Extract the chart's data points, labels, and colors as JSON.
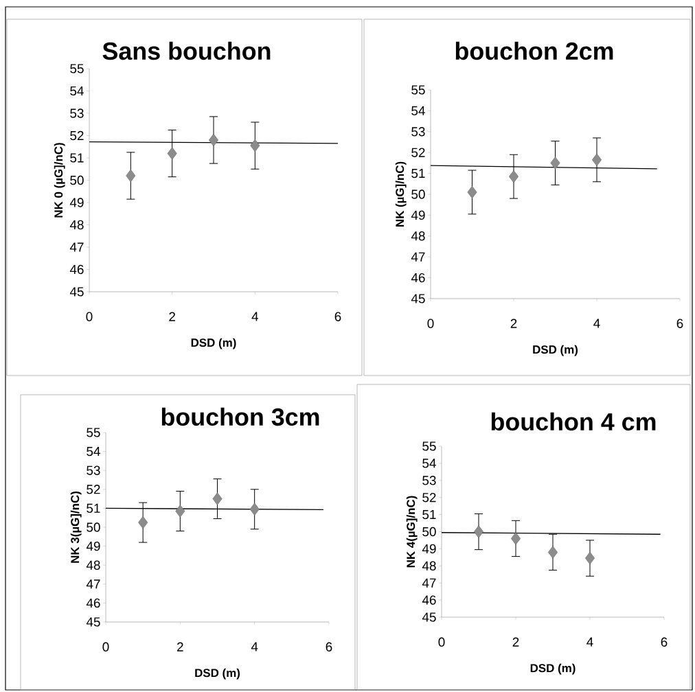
{
  "chart_data": [
    {
      "type": "scatter",
      "title": "Sans bouchon",
      "xlabel": "DSD  (m)",
      "ylabel": "NK 0 (µG]/nC)",
      "xlim": [
        0,
        6
      ],
      "ylim": [
        45,
        55
      ],
      "xticks": [
        0,
        2,
        4,
        6
      ],
      "yticks": [
        45,
        46,
        47,
        48,
        49,
        50,
        51,
        52,
        53,
        54,
        55
      ],
      "series": [
        {
          "type": "line",
          "x": [
            0,
            6
          ],
          "values": [
            51.72,
            51.65
          ],
          "color": "#000000"
        },
        {
          "type": "scatter",
          "marker": "diamond",
          "x": [
            1,
            2,
            3,
            4
          ],
          "values": [
            50.2,
            51.2,
            51.8,
            51.55
          ],
          "errors": [
            1.05,
            1.05,
            1.05,
            1.05
          ],
          "color": "#8c8c8c"
        }
      ]
    },
    {
      "type": "scatter",
      "title": "bouchon 2cm",
      "xlabel": "DSD  (m)",
      "ylabel": "NK  (µG]/nC)",
      "xlim": [
        0,
        6
      ],
      "ylim": [
        45,
        55
      ],
      "xticks": [
        0,
        2,
        4,
        6
      ],
      "yticks": [
        45,
        46,
        47,
        48,
        49,
        50,
        51,
        52,
        53,
        54,
        55
      ],
      "series": [
        {
          "type": "line",
          "x": [
            0,
            5.45
          ],
          "values": [
            51.38,
            51.22
          ],
          "color": "#000000"
        },
        {
          "type": "scatter",
          "marker": "diamond",
          "x": [
            1,
            2,
            3,
            4
          ],
          "values": [
            50.1,
            50.85,
            51.5,
            51.65
          ],
          "errors": [
            1.05,
            1.05,
            1.05,
            1.05
          ],
          "color": "#8c8c8c"
        }
      ]
    },
    {
      "type": "scatter",
      "title": "bouchon 3cm",
      "xlabel": "DSD  (m)",
      "ylabel": "NK 3(µG]/nC)",
      "xlim": [
        0,
        6
      ],
      "ylim": [
        45,
        55
      ],
      "xticks": [
        0,
        2,
        4,
        6
      ],
      "yticks": [
        45,
        46,
        47,
        48,
        49,
        50,
        51,
        52,
        53,
        54,
        55
      ],
      "series": [
        {
          "type": "line",
          "x": [
            0,
            5.85
          ],
          "values": [
            51.0,
            50.93
          ],
          "color": "#000000"
        },
        {
          "type": "scatter",
          "marker": "diamond",
          "x": [
            1,
            2,
            3,
            4
          ],
          "values": [
            50.25,
            50.85,
            51.5,
            50.95
          ],
          "errors": [
            1.05,
            1.05,
            1.05,
            1.05
          ],
          "color": "#8c8c8c"
        }
      ]
    },
    {
      "type": "scatter",
      "title": "bouchon 4 cm",
      "xlabel": "DSD  (m)",
      "ylabel": "NK 4(µG]/nC)",
      "xlim": [
        0,
        6
      ],
      "ylim": [
        45,
        55
      ],
      "xticks": [
        0,
        2,
        4,
        6
      ],
      "yticks": [
        45,
        46,
        47,
        48,
        49,
        50,
        51,
        52,
        53,
        54,
        55
      ],
      "series": [
        {
          "type": "line",
          "x": [
            0,
            5.9
          ],
          "values": [
            49.95,
            49.85
          ],
          "color": "#000000"
        },
        {
          "type": "scatter",
          "marker": "diamond",
          "x": [
            1,
            2,
            3,
            4
          ],
          "values": [
            50.0,
            49.6,
            48.8,
            48.45
          ],
          "errors": [
            1.05,
            1.05,
            1.05,
            1.05
          ],
          "color": "#8c8c8c"
        }
      ]
    }
  ]
}
